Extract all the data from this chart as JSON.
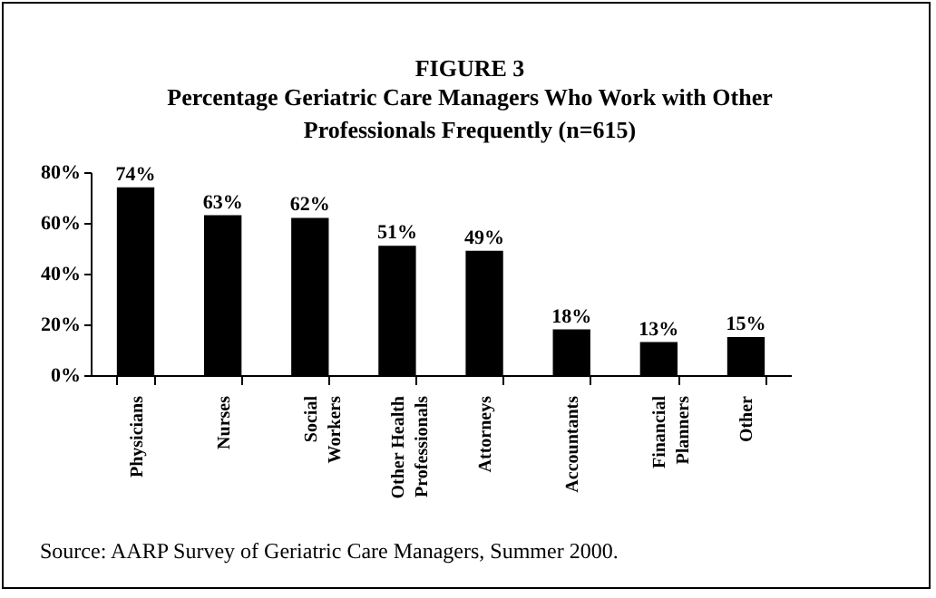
{
  "chart_data": {
    "type": "bar",
    "title": "FIGURE 3",
    "subtitle": "Percentage Geriatric Care Managers Who Work with Other Professionals Frequently (n=615)",
    "categories": [
      "Physicians",
      "Nurses",
      "Social\nWorkers",
      "Other Health\nProfessionals",
      "Attorneys",
      "Accountants",
      "Financial\nPlanners",
      "Other"
    ],
    "values": [
      74,
      63,
      62,
      51,
      49,
      18,
      13,
      15
    ],
    "value_labels": [
      "74%",
      "63%",
      "62%",
      "51%",
      "49%",
      "18%",
      "13%",
      "15%"
    ],
    "color": "#000000",
    "ylim": [
      0,
      80
    ],
    "yticks": [
      {
        "value": 0,
        "label": "0%"
      },
      {
        "value": 20,
        "label": "20%"
      },
      {
        "value": 40,
        "label": "40%"
      },
      {
        "value": 60,
        "label": "60%"
      },
      {
        "value": 80,
        "label": "80%"
      }
    ],
    "grid": false,
    "annotations": [
      "Source: AARP Survey of Geriatric Care Managers, Summer 2000."
    ]
  }
}
